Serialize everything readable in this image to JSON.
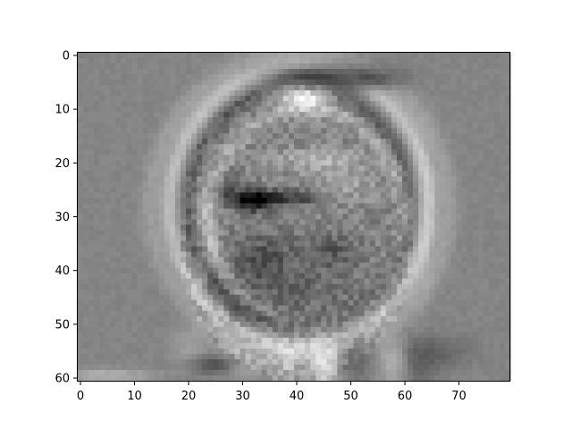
{
  "chart_data": {
    "type": "heatmap",
    "title": "",
    "xlabel": "",
    "ylabel": "",
    "colormap": "gray",
    "grid": false,
    "image_shape": {
      "rows": 61,
      "cols": 80
    },
    "xlim": [
      -0.5,
      79.5
    ],
    "ylim": [
      60.5,
      -0.5
    ],
    "x_ticks": [
      {
        "value": 0,
        "label": "0"
      },
      {
        "value": 10,
        "label": "10"
      },
      {
        "value": 20,
        "label": "20"
      },
      {
        "value": 30,
        "label": "30"
      },
      {
        "value": 40,
        "label": "40"
      },
      {
        "value": 50,
        "label": "50"
      },
      {
        "value": 60,
        "label": "60"
      },
      {
        "value": 70,
        "label": "70"
      }
    ],
    "y_ticks": [
      {
        "value": 0,
        "label": "0"
      },
      {
        "value": 10,
        "label": "10"
      },
      {
        "value": 20,
        "label": "20"
      },
      {
        "value": 30,
        "label": "30"
      },
      {
        "value": 40,
        "label": "40"
      },
      {
        "value": 50,
        "label": "50"
      },
      {
        "value": 60,
        "label": "60"
      }
    ],
    "background_level": 0.52,
    "features": [
      {
        "kind": "ring",
        "cx": 40.5,
        "cy": 28,
        "rx": 24,
        "ry": 26,
        "width": 1.1,
        "amp": 0.22
      },
      {
        "kind": "ring",
        "cx": 40.5,
        "cy": 28,
        "rx": 20.5,
        "ry": 22,
        "width": 1.0,
        "amp": -0.16
      },
      {
        "kind": "ring",
        "cx": 40.5,
        "cy": 28,
        "rx": 27.5,
        "ry": 28.5,
        "width": 1.4,
        "amp": 0.1
      },
      {
        "kind": "ring",
        "cx": 42,
        "cy": 30,
        "rx": 18,
        "ry": 20,
        "width": 1.0,
        "amp": 0.14
      },
      {
        "kind": "blob",
        "cx": 41.5,
        "cy": 7.5,
        "rx": 3.5,
        "ry": 1.6,
        "amp": 0.45
      },
      {
        "kind": "blob",
        "cx": 45,
        "cy": 3.5,
        "rx": 7,
        "ry": 1.4,
        "amp": -0.38
      },
      {
        "kind": "blob",
        "cx": 53,
        "cy": 5,
        "rx": 4,
        "ry": 1.2,
        "amp": -0.25
      },
      {
        "kind": "blob",
        "cx": 32,
        "cy": 27,
        "rx": 2.2,
        "ry": 1.4,
        "amp": -0.48
      },
      {
        "kind": "blob",
        "cx": 38,
        "cy": 26.5,
        "rx": 5,
        "ry": 1.0,
        "amp": -0.3
      },
      {
        "kind": "blob",
        "cx": 27,
        "cy": 25,
        "rx": 2.0,
        "ry": 2.0,
        "amp": -0.2
      },
      {
        "kind": "blob",
        "cx": 49,
        "cy": 24,
        "rx": 4,
        "ry": 2.5,
        "amp": 0.12
      },
      {
        "kind": "blob",
        "cx": 44,
        "cy": 19.5,
        "rx": 6,
        "ry": 1.5,
        "amp": 0.16
      },
      {
        "kind": "blob",
        "cx": 38,
        "cy": 42,
        "rx": 10,
        "ry": 6,
        "amp": -0.12
      },
      {
        "kind": "blob",
        "cx": 34,
        "cy": 38,
        "rx": 3,
        "ry": 3,
        "amp": -0.14
      },
      {
        "kind": "blob",
        "cx": 47,
        "cy": 36,
        "rx": 3,
        "ry": 2,
        "amp": -0.12
      },
      {
        "kind": "blob",
        "cx": 45,
        "cy": 58,
        "rx": 2,
        "ry": 3,
        "amp": 0.28
      },
      {
        "kind": "blob",
        "cx": 58,
        "cy": 57,
        "rx": 2,
        "ry": 3,
        "amp": 0.22
      },
      {
        "kind": "blob",
        "cx": 38,
        "cy": 57,
        "rx": 2,
        "ry": 3,
        "amp": 0.16
      },
      {
        "kind": "blob",
        "cx": 30,
        "cy": 57,
        "rx": 3,
        "ry": 2.5,
        "amp": 0.14
      },
      {
        "kind": "blob",
        "cx": 25,
        "cy": 57.5,
        "rx": 3,
        "ry": 1.2,
        "amp": -0.24
      },
      {
        "kind": "blob",
        "cx": 51,
        "cy": 56,
        "rx": 2,
        "ry": 3,
        "amp": -0.14
      },
      {
        "kind": "blob",
        "cx": 62,
        "cy": 57,
        "rx": 3,
        "ry": 3,
        "amp": -0.14
      },
      {
        "kind": "blob",
        "cx": 67,
        "cy": 55,
        "rx": 4,
        "ry": 2,
        "amp": -0.1
      },
      {
        "kind": "blob",
        "cx": 20,
        "cy": 54,
        "rx": 2.5,
        "ry": 2.5,
        "amp": 0.1
      },
      {
        "kind": "blob",
        "cx": 23,
        "cy": 32,
        "rx": 1.5,
        "ry": 10,
        "amp": 0.12
      },
      {
        "kind": "blob",
        "cx": 63,
        "cy": 30,
        "rx": 1.5,
        "ry": 10,
        "amp": 0.08
      },
      {
        "kind": "blob",
        "cx": 5,
        "cy": 59.5,
        "rx": 6,
        "ry": 0.8,
        "amp": 0.18
      }
    ]
  }
}
